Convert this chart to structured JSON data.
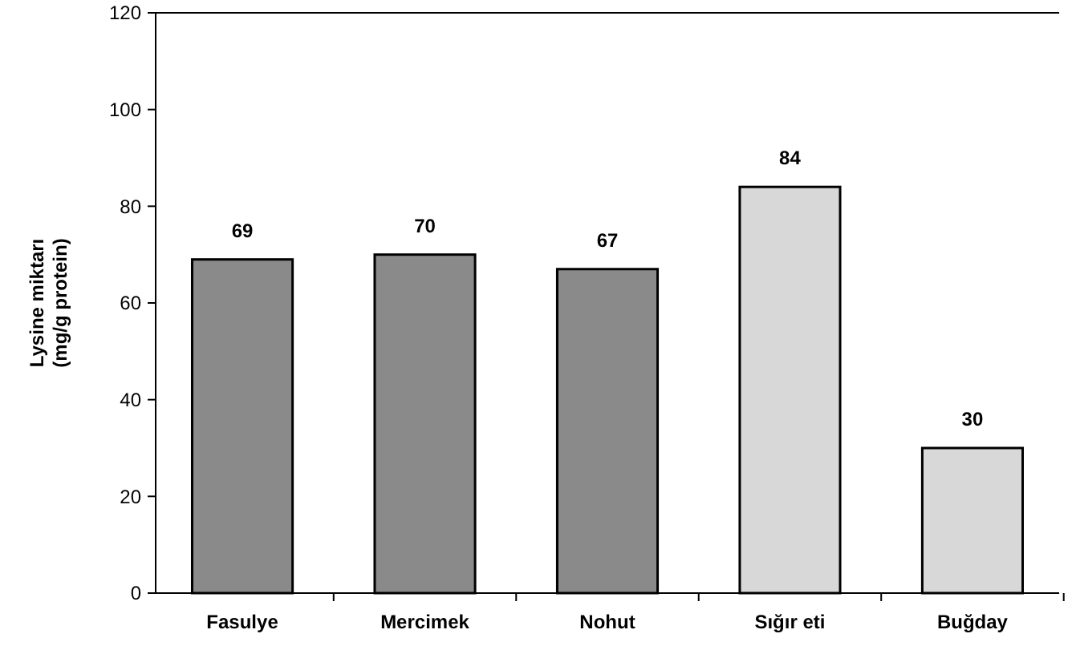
{
  "chart_data": {
    "type": "bar",
    "ylabel": "Lysine miktarı\n(mg/g protein)",
    "categories": [
      "Fasulye",
      "Mercimek",
      "Nohut",
      "Sığır eti",
      "Buğday"
    ],
    "values": [
      69,
      70,
      67,
      84,
      30
    ],
    "colors": [
      "#8a8a8a",
      "#8a8a8a",
      "#8a8a8a",
      "#d8d8d8",
      "#d8d8d8"
    ],
    "ylim": [
      0,
      120
    ],
    "yticks": [
      0,
      20,
      40,
      60,
      80,
      100,
      120
    ],
    "data_labels": true,
    "grid": false
  }
}
